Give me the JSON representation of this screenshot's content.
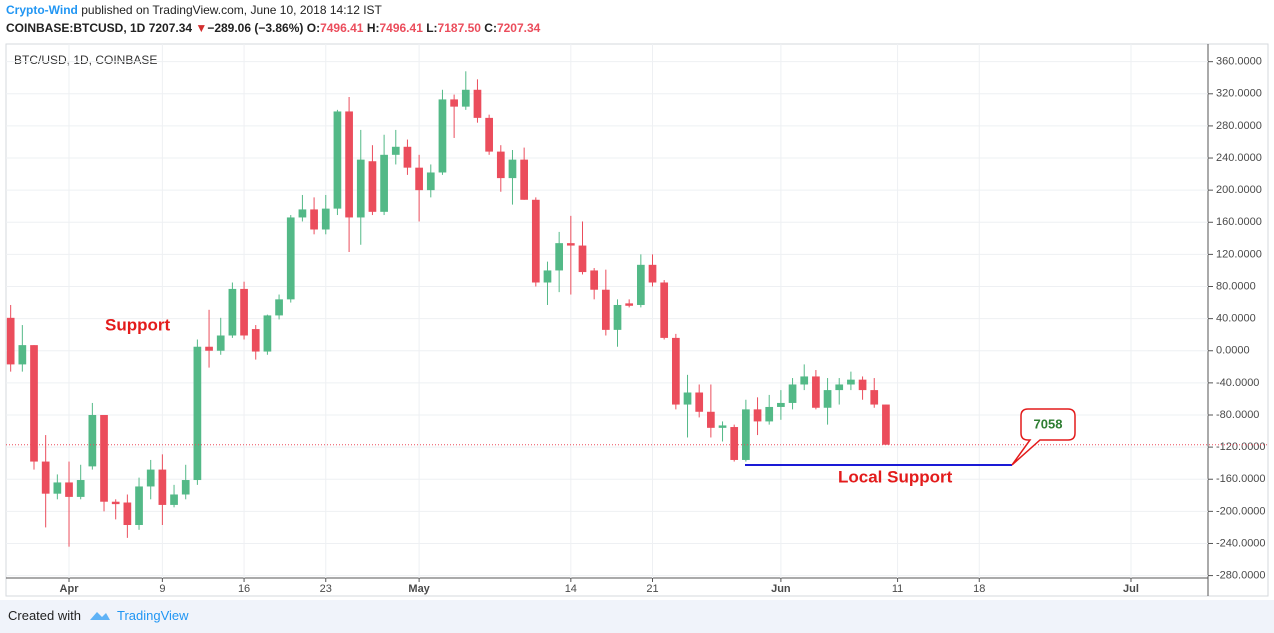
{
  "header": {
    "author": "Crypto-Wind",
    "published": "published on TradingView.com, June 10, 2018 14:12 IST",
    "symbol": "COINBASE:BTCUSD, 1D",
    "last": "7207.34",
    "arrow": "▼",
    "change": "−289.06 (−3.86%)",
    "o_label": "O:",
    "o": "7496.41",
    "h_label": "H:",
    "h": "7496.41",
    "l_label": "L:",
    "l": "7187.50",
    "c_label": "C:",
    "c": "7207.34"
  },
  "chart_data": {
    "type": "candlestick",
    "title": "BTC/USD, 1D, COINBASE",
    "categories": [
      null,
      null,
      null,
      null,
      null,
      "Apr",
      null,
      null,
      null,
      null,
      null,
      null,
      null,
      "9",
      null,
      null,
      null,
      null,
      null,
      null,
      "16",
      null,
      null,
      null,
      null,
      null,
      null,
      "23",
      null,
      null,
      null,
      null,
      null,
      null,
      null,
      "May",
      null,
      null,
      null,
      null,
      null,
      null,
      null,
      null,
      null,
      null,
      null,
      null,
      "14",
      null,
      null,
      null,
      null,
      null,
      null,
      "21",
      null,
      null,
      null,
      null,
      null,
      null,
      null,
      null,
      null,
      null,
      "Jun",
      null,
      null,
      null,
      null,
      null,
      null,
      null,
      null,
      null,
      "11",
      null,
      null,
      null,
      null,
      null,
      null,
      "18",
      null,
      null,
      null,
      null,
      null,
      null,
      null,
      null,
      null,
      null,
      null,
      null,
      "Jul",
      null,
      null,
      null,
      null,
      null,
      null
    ],
    "open": [
      41,
      -17,
      7,
      -138,
      -178,
      -164,
      -182,
      -144,
      -80,
      -188,
      -189,
      -217,
      -169,
      -148,
      -192,
      -179,
      -161,
      5,
      0,
      19,
      77,
      27,
      -1,
      44,
      64,
      166,
      176,
      151,
      177,
      298,
      166,
      236,
      173,
      244,
      254,
      228,
      200,
      222,
      313,
      304,
      325,
      290,
      248,
      215,
      238,
      188,
      85,
      100,
      134,
      131,
      100,
      76,
      26,
      59,
      57,
      107,
      85,
      16,
      -67,
      -52,
      -76,
      -96,
      -95,
      -136,
      -73,
      -88,
      -70,
      -65,
      -42,
      -32,
      -71,
      -49,
      -42,
      -36,
      -49,
      -67,
      null,
      null,
      null,
      null,
      null,
      null,
      null,
      null,
      null,
      null,
      null,
      null,
      null,
      null,
      null,
      null,
      null,
      null,
      null,
      null,
      null,
      null,
      null,
      null,
      null,
      null,
      null
    ],
    "high": [
      57,
      32,
      7,
      -105,
      -154,
      -138,
      -142,
      -65,
      -80,
      -185,
      -179,
      -158,
      -136,
      -129,
      -167,
      -142,
      14,
      51,
      41,
      85,
      86,
      32,
      45,
      70,
      169,
      194,
      191,
      194,
      300,
      316,
      275,
      256,
      269,
      275,
      263,
      244,
      232,
      325,
      319,
      348,
      338,
      294,
      256,
      250,
      253,
      191,
      111,
      148,
      168,
      161,
      103,
      101,
      64,
      64,
      120,
      120,
      88,
      21,
      -30,
      -42,
      -42,
      -88,
      -92,
      -61,
      -58,
      -55,
      -49,
      -34,
      -17,
      -24,
      -34,
      -34,
      -26,
      -32,
      -34,
      -67,
      null,
      null,
      null,
      null,
      null,
      null,
      null,
      null,
      null,
      null,
      null,
      null,
      null,
      null,
      null,
      null,
      null,
      null,
      null,
      null,
      null,
      null,
      null,
      null,
      null,
      null,
      null
    ],
    "low": [
      -26,
      -26,
      -148,
      -220,
      -185,
      -244,
      -185,
      -148,
      -200,
      -210,
      -233,
      -223,
      -185,
      -217,
      -195,
      -185,
      -167,
      -21,
      -5,
      16,
      14,
      -11,
      -5,
      39,
      60,
      161,
      145,
      145,
      169,
      123,
      132,
      169,
      169,
      232,
      219,
      161,
      191,
      219,
      265,
      300,
      284,
      244,
      198,
      182,
      188,
      80,
      57,
      73,
      70,
      95,
      64,
      19,
      5,
      54,
      54,
      80,
      14,
      -73,
      -108,
      -83,
      -108,
      -113,
      -138,
      -138,
      -105,
      -92,
      -86,
      -73,
      -49,
      -73,
      -92,
      -67,
      -49,
      -61,
      -71,
      -117,
      null,
      null,
      null,
      null,
      null,
      null,
      null,
      null,
      null,
      null,
      null,
      null,
      null,
      null,
      null,
      null,
      null,
      null,
      null,
      null,
      null,
      null,
      null,
      null,
      null,
      null,
      null
    ],
    "close": [
      -17,
      7,
      -138,
      -178,
      -164,
      -182,
      -161,
      -80,
      -188,
      -191,
      -217,
      -169,
      -148,
      -192,
      -179,
      -161,
      5,
      0,
      19,
      77,
      19,
      -1,
      44,
      64,
      166,
      176,
      151,
      177,
      298,
      166,
      238,
      173,
      244,
      254,
      228,
      200,
      222,
      313,
      304,
      325,
      290,
      248,
      215,
      238,
      188,
      85,
      100,
      134,
      131,
      98,
      76,
      26,
      57,
      56,
      107,
      85,
      16,
      -67,
      -52,
      -76,
      -96,
      -93,
      -136,
      -73,
      -88,
      -70,
      -65,
      -42,
      -32,
      -71,
      -49,
      -42,
      -36,
      -49,
      -67,
      -117,
      null,
      null,
      null,
      null,
      null,
      null,
      null,
      null,
      null,
      null,
      null,
      null,
      null,
      null,
      null,
      null,
      null,
      null,
      null,
      null,
      null,
      null,
      null,
      null,
      null,
      null,
      null
    ],
    "up_color": "#53b987",
    "down_color": "#eb4d5c",
    "ylim": [
      -283,
      382
    ],
    "yticks": [
      {
        "value": 360,
        "label": "360.0000"
      },
      {
        "value": 320,
        "label": "320.0000"
      },
      {
        "value": 280,
        "label": "280.0000"
      },
      {
        "value": 240,
        "label": "240.0000"
      },
      {
        "value": 200,
        "label": "200.0000"
      },
      {
        "value": 160,
        "label": "160.0000"
      },
      {
        "value": 120,
        "label": "120.0000"
      },
      {
        "value": 80,
        "label": "80.0000"
      },
      {
        "value": 40,
        "label": "40.0000"
      },
      {
        "value": 0,
        "label": "0.0000"
      },
      {
        "value": -40,
        "label": "-40.0000"
      },
      {
        "value": -80,
        "label": "-80.0000"
      },
      {
        "value": -120,
        "label": "-120.0000"
      },
      {
        "value": -160,
        "label": "-160.0000"
      },
      {
        "value": -200,
        "label": "-200.0000"
      },
      {
        "value": -240,
        "label": "-240.0000"
      },
      {
        "value": -280,
        "label": "-280.0000"
      }
    ],
    "grid": true,
    "price_line": true,
    "annotations": {
      "support": "Support",
      "local_support": "Local Support",
      "callout": "7058"
    }
  },
  "footer": {
    "created": "Created with",
    "brand": "TradingView"
  }
}
